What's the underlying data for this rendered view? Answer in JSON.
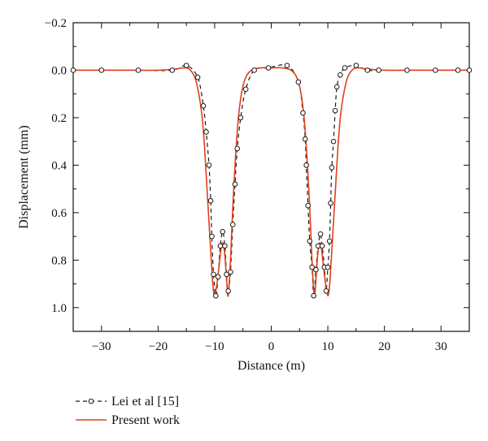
{
  "chart_data": {
    "type": "line",
    "xlabel": "Distance (m)",
    "ylabel": "Displacement (mm)",
    "xlim": [
      -35,
      35
    ],
    "ylim": [
      -0.2,
      1.1
    ],
    "y_inverted": true,
    "xticks": [
      -30,
      -20,
      -10,
      0,
      10,
      20,
      30
    ],
    "xtick_labels": [
      "−30",
      "−20",
      "−10",
      "0",
      "10",
      "20",
      "30"
    ],
    "yticks": [
      -0.2,
      0.0,
      0.2,
      0.4,
      0.6,
      0.8,
      1.0
    ],
    "ytick_labels": [
      "−0.2",
      "0.0",
      "0.2",
      "0.4",
      "0.6",
      "0.8",
      "1.0"
    ],
    "grid": false,
    "legend_position": "bottom-left-outside",
    "colors": {
      "present": "#e0401c",
      "lei": "#1a1a1a"
    },
    "series": [
      {
        "name": "Lei et al [15]",
        "style": "dashed-with-open-circles",
        "x": [
          -35,
          -30,
          -23.5,
          -17.5,
          -15,
          -13,
          -12,
          -11.5,
          -11,
          -10.7,
          -10.5,
          -10.2,
          -9.8,
          -9.4,
          -9.0,
          -8.6,
          -8.2,
          -7.9,
          -7.6,
          -7.2,
          -6.8,
          -6.4,
          -6.0,
          -5.4,
          -4.5,
          -3,
          -0.5,
          2.8,
          4.8,
          5.6,
          6.0,
          6.2,
          6.5,
          6.8,
          7.2,
          7.5,
          7.9,
          8.3,
          8.7,
          9.0,
          9.4,
          9.7,
          10.0,
          10.3,
          10.5,
          10.7,
          11.0,
          11.3,
          11.6,
          12.2,
          13,
          15,
          17,
          19,
          24,
          29,
          33,
          35
        ],
        "y": [
          0.0,
          0.0,
          0.0,
          0.0,
          -0.02,
          0.03,
          0.15,
          0.26,
          0.4,
          0.55,
          0.7,
          0.86,
          0.95,
          0.87,
          0.74,
          0.68,
          0.74,
          0.86,
          0.93,
          0.85,
          0.65,
          0.48,
          0.33,
          0.2,
          0.08,
          0.0,
          -0.01,
          -0.02,
          0.05,
          0.18,
          0.29,
          0.4,
          0.57,
          0.72,
          0.83,
          0.95,
          0.84,
          0.74,
          0.69,
          0.74,
          0.83,
          0.93,
          0.83,
          0.72,
          0.56,
          0.41,
          0.3,
          0.17,
          0.07,
          0.02,
          -0.01,
          -0.02,
          0.0,
          0.0,
          0.0,
          0.0,
          0.0,
          0.0
        ]
      },
      {
        "name": "Present work",
        "style": "solid",
        "x": [
          -35,
          -25,
          -20,
          -17,
          -15.5,
          -14.5,
          -13.5,
          -12.8,
          -12.2,
          -11.8,
          -11.4,
          -11.0,
          -10.6,
          -10.3,
          -10.0,
          -9.6,
          -9.2,
          -8.8,
          -8.5,
          -8.2,
          -7.9,
          -7.6,
          -7.2,
          -6.8,
          -6.3,
          -5.8,
          -5.2,
          -4.5,
          -3.5,
          -2,
          0,
          2,
          3.5,
          4.5,
          5.2,
          5.8,
          6.3,
          6.8,
          7.2,
          7.6,
          7.9,
          8.2,
          8.5,
          8.8,
          9.2,
          9.6,
          10.0,
          10.3,
          10.6,
          11.0,
          11.4,
          11.8,
          12.2,
          12.8,
          13.5,
          14.5,
          15.5,
          17,
          20,
          25,
          35
        ],
        "y": [
          0.0,
          0.0,
          0.0,
          -0.005,
          -0.01,
          -0.005,
          0.03,
          0.1,
          0.2,
          0.32,
          0.48,
          0.64,
          0.8,
          0.91,
          0.95,
          0.9,
          0.82,
          0.74,
          0.73,
          0.78,
          0.88,
          0.95,
          0.8,
          0.58,
          0.36,
          0.2,
          0.09,
          0.03,
          0.0,
          -0.01,
          -0.01,
          -0.01,
          0.0,
          0.03,
          0.09,
          0.2,
          0.36,
          0.58,
          0.8,
          0.95,
          0.88,
          0.78,
          0.73,
          0.74,
          0.82,
          0.9,
          0.95,
          0.91,
          0.8,
          0.64,
          0.48,
          0.32,
          0.2,
          0.1,
          0.03,
          -0.005,
          -0.01,
          -0.005,
          0.0,
          0.0,
          0.0
        ]
      }
    ]
  }
}
